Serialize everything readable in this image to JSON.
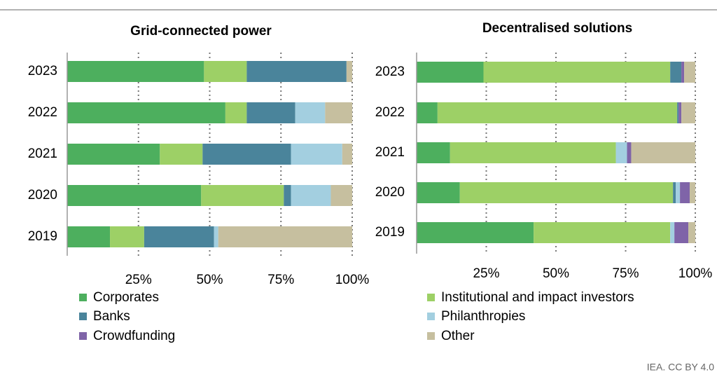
{
  "chart_data": [
    {
      "type": "stacked-bar",
      "title": "Grid-connected power",
      "categories": [
        "2023",
        "2022",
        "2021",
        "2020",
        "2019"
      ],
      "series": [
        {
          "name": "Corporates",
          "color": "#4daf5e",
          "values": [
            48,
            55.5,
            32.5,
            47,
            15
          ]
        },
        {
          "name": "Institutional and impact investors",
          "color": "#9dd066",
          "values": [
            15,
            7.5,
            15,
            29,
            12
          ]
        },
        {
          "name": "Banks",
          "color": "#4a849b",
          "values": [
            35,
            17,
            31,
            2.5,
            24.5
          ]
        },
        {
          "name": "Philanthropies",
          "color": "#a3cfe0",
          "values": [
            0,
            10.5,
            18,
            14,
            1.5
          ]
        },
        {
          "name": "Crowdfunding",
          "color": "#7f64a8",
          "values": [
            0,
            0,
            0,
            0,
            0
          ]
        },
        {
          "name": "Other",
          "color": "#c6bf9f",
          "values": [
            2,
            9.5,
            3.5,
            7.5,
            47
          ]
        }
      ],
      "xlim": [
        0,
        100
      ],
      "xticks": [
        {
          "value": 25,
          "label": "25%"
        },
        {
          "value": 50,
          "label": "50%"
        },
        {
          "value": 75,
          "label": "75%"
        },
        {
          "value": 100,
          "label": "100%"
        }
      ],
      "grid": true
    },
    {
      "type": "stacked-bar",
      "title": "Decentralised solutions",
      "categories": [
        "2023",
        "2022",
        "2021",
        "2020",
        "2019"
      ],
      "series": [
        {
          "name": "Corporates",
          "color": "#4daf5e",
          "values": [
            24,
            7.5,
            12,
            15.5,
            42
          ]
        },
        {
          "name": "Institutional and impact investors",
          "color": "#9dd066",
          "values": [
            67,
            86,
            59.5,
            76.5,
            49
          ]
        },
        {
          "name": "Banks",
          "color": "#4a849b",
          "values": [
            4,
            0.5,
            0,
            1,
            0
          ]
        },
        {
          "name": "Philanthropies",
          "color": "#a3cfe0",
          "values": [
            0,
            0,
            4,
            1.5,
            1.5
          ]
        },
        {
          "name": "Crowdfunding",
          "color": "#7f64a8",
          "values": [
            1,
            1,
            1.5,
            3.5,
            5
          ]
        },
        {
          "name": "Other",
          "color": "#c6bf9f",
          "values": [
            4,
            5,
            23,
            2,
            2.5
          ]
        }
      ],
      "xlim": [
        0,
        100
      ],
      "xticks": [
        {
          "value": 25,
          "label": "25%"
        },
        {
          "value": 50,
          "label": "50%"
        },
        {
          "value": 75,
          "label": "75%"
        },
        {
          "value": 100,
          "label": "100%"
        }
      ],
      "grid": true
    }
  ],
  "source": "IEA. CC BY 4.0"
}
